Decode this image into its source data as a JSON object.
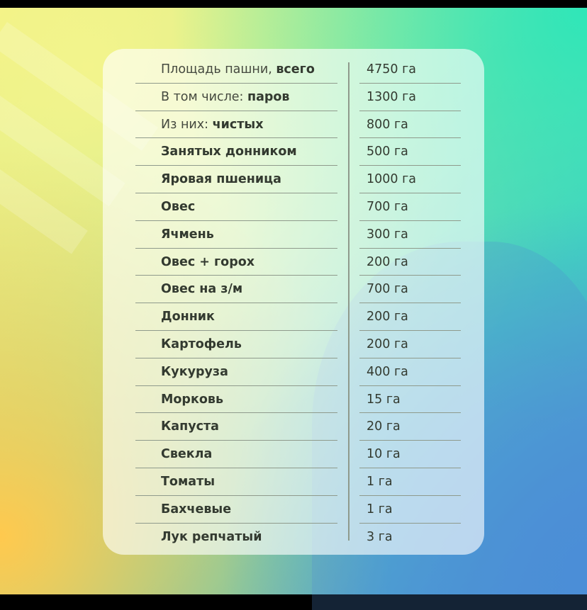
{
  "colors": {
    "text": "#333a30",
    "rule": "#8f9a8c",
    "card": "rgba(255,255,255,0.62)"
  },
  "rows": [
    {
      "label": "Площадь пашни, ",
      "label_bold": "всего",
      "value": "4750 га"
    },
    {
      "label": "В том числе: ",
      "label_bold": "паров",
      "value": "1300 га"
    },
    {
      "label": "Из них: ",
      "label_bold": "чистых",
      "value": "800 га"
    },
    {
      "label": "",
      "label_bold": "Занятых донником",
      "value": "500 га"
    },
    {
      "label": "",
      "label_bold": "Яровая пшеница",
      "value": "1000 га"
    },
    {
      "label": "",
      "label_bold": "Овес",
      "value": "700 га"
    },
    {
      "label": "",
      "label_bold": "Ячмень",
      "value": "300 га"
    },
    {
      "label": "",
      "label_bold": "Овес + горох",
      "value": "200 га"
    },
    {
      "label": "",
      "label_bold": "Овес на з/м",
      "value": "700 га"
    },
    {
      "label": "",
      "label_bold": "Донник",
      "value": "200 га"
    },
    {
      "label": "",
      "label_bold": "Картофель",
      "value": "200 га"
    },
    {
      "label": "",
      "label_bold": "Кукуруза",
      "value": "400 га"
    },
    {
      "label": "",
      "label_bold": "Морковь",
      "value": "15 га"
    },
    {
      "label": "",
      "label_bold": "Капуста",
      "value": "20 га"
    },
    {
      "label": "",
      "label_bold": "Свекла",
      "value": "10 га"
    },
    {
      "label": "",
      "label_bold": "Томаты",
      "value": "1 га"
    },
    {
      "label": "",
      "label_bold": "Бахчевые",
      "value": "1 га"
    },
    {
      "label": "",
      "label_bold": "Лук репчатый",
      "value": "3 га"
    }
  ]
}
